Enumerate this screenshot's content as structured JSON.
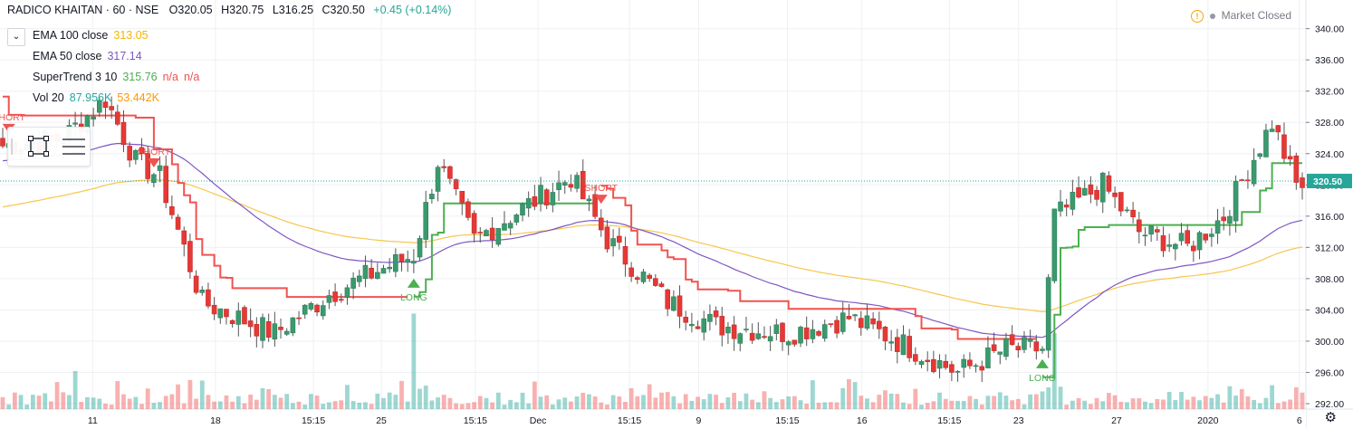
{
  "header": {
    "symbol": "RADICO KHAITAN · 60 · NSE",
    "open": "O320.05",
    "high": "H320.75",
    "low": "L316.25",
    "close": "C320.50",
    "change": "+0.45 (+0.14%)"
  },
  "market_status": {
    "label": "Market Closed",
    "icon": "warning-icon"
  },
  "indicators": [
    {
      "name": "EMA 100 close",
      "values": [
        "313.05"
      ],
      "colors": [
        "#f4b400"
      ]
    },
    {
      "name": "EMA 50 close",
      "values": [
        "317.14"
      ],
      "colors": [
        "#7e57c2"
      ]
    },
    {
      "name": "SuperTrend 3 10",
      "values": [
        "315.76",
        "n/a",
        "n/a"
      ],
      "colors": [
        "#4caf50",
        "#f05350",
        "#f05350"
      ]
    },
    {
      "name": "Vol 20",
      "values": [
        "87.956K",
        "53.442K"
      ],
      "colors": [
        "#26a69a",
        "#ff9800"
      ]
    }
  ],
  "colors": {
    "up": "#26a69a",
    "down": "#ef5350",
    "ema100": "#f7c64c",
    "ema50": "#7e57c2",
    "st_up": "#4caf50",
    "st_down": "#f05350",
    "grid": "#eef0f3"
  },
  "chart_data": {
    "type": "candlestick",
    "title": "RADICO KHAITAN · 60 · NSE",
    "y_axis": {
      "ticks": [
        "292.00",
        "296.00",
        "300.00",
        "304.00",
        "308.00",
        "312.00",
        "316.00",
        "320.00",
        "324.00",
        "328.00",
        "332.00",
        "336.00",
        "340.00"
      ],
      "range": [
        292,
        341
      ]
    },
    "x_axis": {
      "ticks": [
        "11",
        "18",
        "15:15",
        "25",
        "15:15",
        "Dec",
        "15:15",
        "9",
        "15:15",
        "16",
        "15:15",
        "23",
        "27",
        "2020",
        "6"
      ]
    },
    "last_price_label": "320.50",
    "signals": [
      {
        "label": "SHORT",
        "type": "short",
        "bar": 1
      },
      {
        "label": "SHORT",
        "type": "short",
        "bar": 25
      },
      {
        "label": "LONG",
        "type": "long",
        "bar": 68
      },
      {
        "label": "SHORT",
        "type": "short",
        "bar": 99
      },
      {
        "label": "LONG",
        "type": "long",
        "bar": 172
      }
    ],
    "anchors": [
      [
        0,
        325
      ],
      [
        10,
        326
      ],
      [
        17,
        331
      ],
      [
        22,
        323
      ],
      [
        26,
        321
      ],
      [
        33,
        305
      ],
      [
        45,
        301
      ],
      [
        54,
        306
      ],
      [
        62,
        309
      ],
      [
        68,
        311
      ],
      [
        72,
        323
      ],
      [
        78,
        313
      ],
      [
        88,
        318
      ],
      [
        94,
        321
      ],
      [
        100,
        313
      ],
      [
        110,
        305
      ],
      [
        118,
        302
      ],
      [
        130,
        301
      ],
      [
        140,
        303
      ],
      [
        148,
        300
      ],
      [
        158,
        296
      ],
      [
        166,
        299
      ],
      [
        172,
        299
      ],
      [
        174,
        316
      ],
      [
        182,
        320
      ],
      [
        188,
        314
      ],
      [
        196,
        312
      ],
      [
        202,
        316
      ],
      [
        206,
        322
      ],
      [
        210,
        328
      ],
      [
        214,
        320
      ]
    ],
    "volume_spikes": [
      [
        68,
        0.88
      ],
      [
        174,
        0.7
      ],
      [
        12,
        0.35
      ],
      [
        210,
        0.22
      ]
    ]
  }
}
